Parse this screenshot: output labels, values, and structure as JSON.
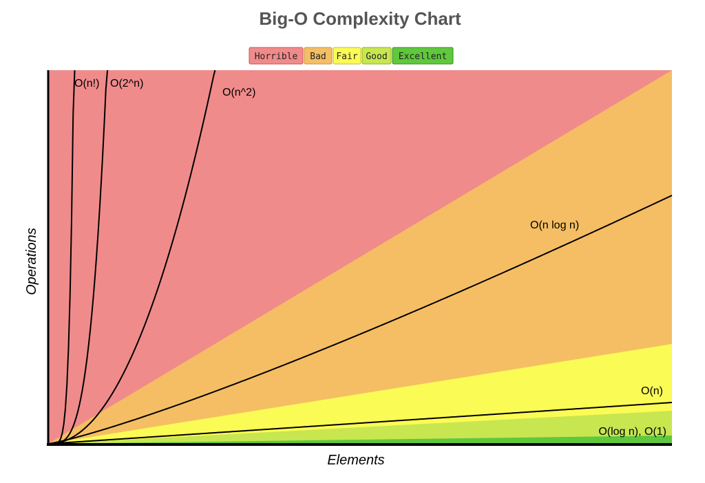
{
  "chart_data": {
    "type": "line",
    "title": "Big-O Complexity Chart",
    "xlabel": "Elements",
    "ylabel": "Operations",
    "grid": false,
    "legend_position": "top-center",
    "legend": [
      {
        "name": "Horrible",
        "color": "#f08b8b",
        "border": "#d05050"
      },
      {
        "name": "Bad",
        "color": "#f5be64",
        "border": "#c8963c"
      },
      {
        "name": "Fair",
        "color": "#fbfb55",
        "border": "#bdbd3a"
      },
      {
        "name": "Good",
        "color": "#c8e650",
        "border": "#8fb02a"
      },
      {
        "name": "Excellent",
        "color": "#5fc83c",
        "border": "#3c8a26"
      }
    ],
    "series": [
      {
        "name": "O(n!)",
        "label": "O(n!)"
      },
      {
        "name": "O(2^n)",
        "label": "O(2^n)"
      },
      {
        "name": "O(n^2)",
        "label": "O(n^2)"
      },
      {
        "name": "O(n log n)",
        "label": "O(n log n)"
      },
      {
        "name": "O(n)",
        "label": "O(n)"
      },
      {
        "name": "O(log n), O(1)",
        "label": "O(log n), O(1)"
      }
    ]
  }
}
